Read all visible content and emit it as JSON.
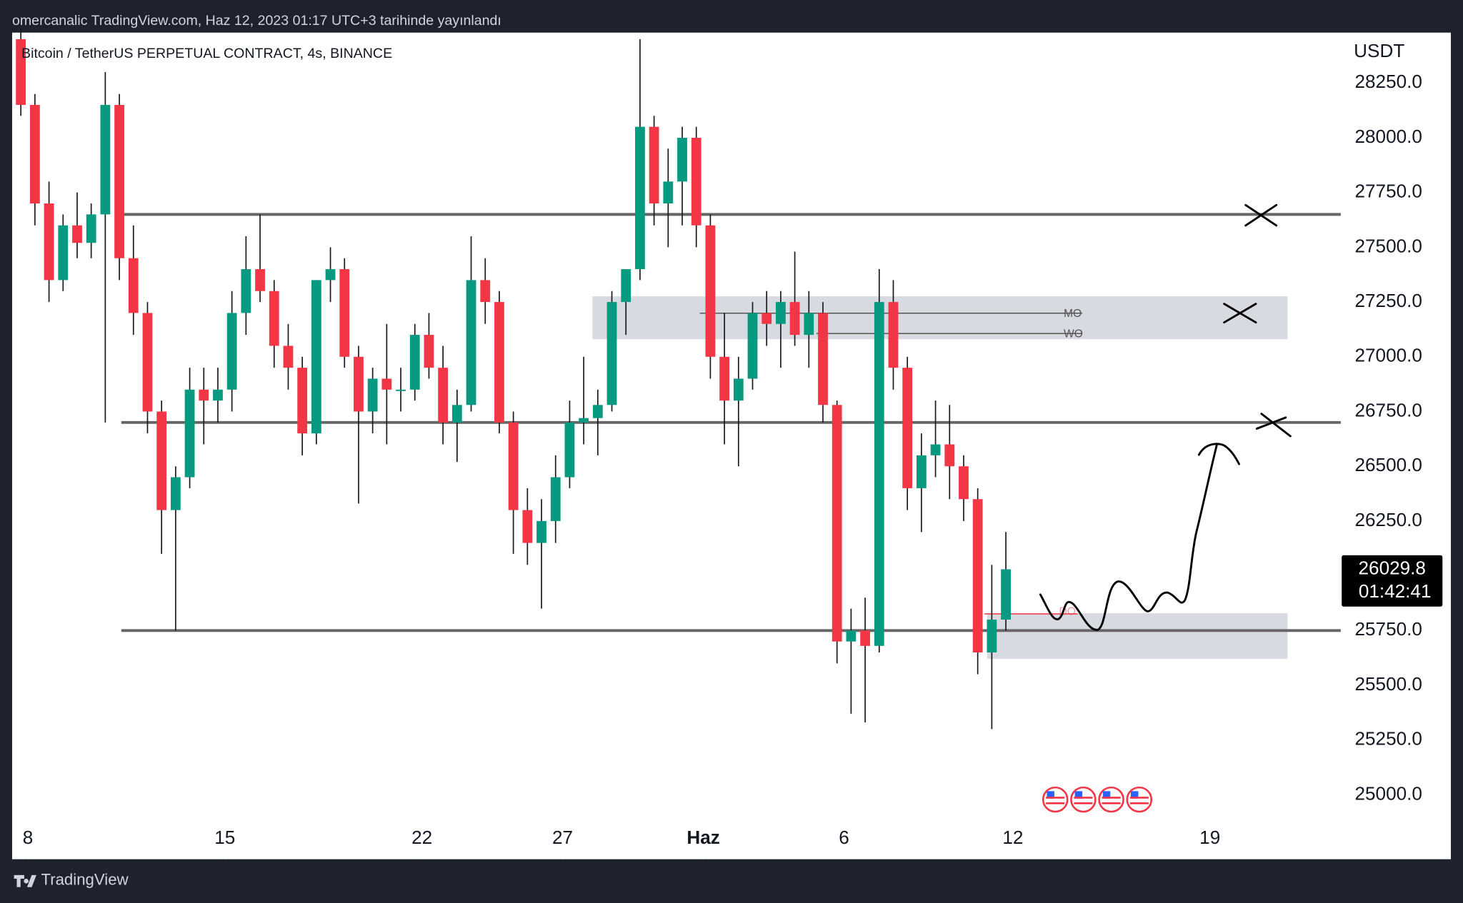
{
  "header": "omercanalic TradingView.com, Haz 12, 2023 01:17 UTC+3 tarihinde yayınlandı",
  "footer": "TradingView",
  "chart_data": {
    "type": "candlestick",
    "title": "Bitcoin / TetherUS PERPETUAL CONTRACT, 4s, BINANCE",
    "y_axis_label": "USDT",
    "up_color": "#089981",
    "down_color": "#f23645",
    "x": [
      -0.5,
      0,
      0.5,
      1,
      1.5,
      2,
      2.5,
      3,
      3.5,
      4,
      4.5,
      5,
      5.5,
      6,
      6.5,
      7,
      7.5,
      8,
      8.5,
      9,
      9.5,
      10,
      10.5,
      11,
      11.5,
      12,
      12.5,
      13,
      13.5,
      14,
      14.5,
      15,
      15.5,
      16,
      16.5,
      17,
      17.5,
      18,
      18.5,
      19,
      19.5,
      20,
      20.5,
      21,
      21.5,
      22,
      22.5,
      23,
      23.5,
      24,
      24.5,
      25,
      25.5,
      26,
      26.5,
      27,
      27.5,
      28,
      28.5,
      29,
      29.5,
      30,
      30.5,
      31,
      31.5,
      32,
      32.5,
      33,
      33.5,
      34,
      34.5
    ],
    "open": [
      28450,
      28150,
      27700,
      27350,
      27600,
      27520,
      27650,
      28150,
      27450,
      27200,
      26750,
      26300,
      26450,
      26850,
      26800,
      26850,
      27200,
      27400,
      27300,
      27050,
      26950,
      26650,
      27350,
      27400,
      27000,
      26750,
      26900,
      26850,
      26850,
      27100,
      26950,
      26700,
      26780,
      27350,
      27250,
      26700,
      26300,
      26150,
      26250,
      26450,
      26700,
      26720,
      26780,
      27250,
      27400,
      28050,
      27700,
      27800,
      28000,
      27600,
      27000,
      26800,
      26900,
      27200,
      27150,
      27250,
      27100,
      27200,
      26780,
      25700,
      25750,
      25680,
      27250,
      26950,
      26400,
      26550,
      26600,
      26500,
      26350,
      25650,
      25800
    ],
    "high": [
      28500,
      28200,
      27800,
      27650,
      27750,
      27700,
      28300,
      28200,
      27600,
      27250,
      26800,
      26500,
      26950,
      26950,
      26950,
      27300,
      27550,
      27650,
      27350,
      27150,
      27000,
      27350,
      27500,
      27450,
      27050,
      26950,
      27150,
      26950,
      27150,
      27200,
      27050,
      26850,
      27550,
      27450,
      27300,
      26750,
      26400,
      26350,
      26550,
      26800,
      27000,
      26850,
      27300,
      27400,
      28450,
      28100,
      27950,
      28050,
      28050,
      27650,
      27200,
      27000,
      27250,
      27300,
      27300,
      27480,
      27300,
      27250,
      26800,
      25850,
      25900,
      27400,
      27350,
      27000,
      26650,
      26800,
      26780,
      26550,
      26400,
      26050,
      26200
    ],
    "low": [
      28100,
      27600,
      27250,
      27300,
      27450,
      27450,
      26700,
      27350,
      27100,
      26650,
      26100,
      25750,
      26400,
      26600,
      26700,
      26750,
      27100,
      27250,
      26950,
      26850,
      26550,
      26600,
      27250,
      26950,
      26330,
      26650,
      26600,
      26750,
      26800,
      26900,
      26600,
      26520,
      26750,
      27150,
      26650,
      26100,
      26050,
      25850,
      26150,
      26400,
      26600,
      26550,
      26750,
      27100,
      27350,
      27600,
      27500,
      27600,
      27500,
      26900,
      26600,
      26500,
      26850,
      27050,
      26950,
      27050,
      26950,
      26700,
      25600,
      25370,
      25330,
      25650,
      26850,
      26300,
      26200,
      26450,
      26350,
      26250,
      25550,
      25300,
      25750
    ],
    "close": [
      28150,
      27700,
      27350,
      27600,
      27520,
      27650,
      28150,
      27450,
      27200,
      26750,
      26300,
      26450,
      26850,
      26800,
      26850,
      27200,
      27400,
      27300,
      27050,
      26950,
      26650,
      27350,
      27400,
      27000,
      26750,
      26900,
      26850,
      26850,
      27100,
      26950,
      26700,
      26780,
      27350,
      27250,
      26700,
      26300,
      26150,
      26250,
      26450,
      26700,
      26720,
      26780,
      27250,
      27400,
      28050,
      27700,
      27800,
      28000,
      27600,
      27000,
      26800,
      26900,
      27200,
      27150,
      27250,
      27100,
      27200,
      26780,
      25700,
      25750,
      25680,
      27250,
      26950,
      26400,
      26550,
      26600,
      26500,
      26350,
      25650,
      25800,
      26029.8
    ],
    "last_price": 26029.8,
    "countdown": "01:42:41",
    "levels": [
      27650,
      26700,
      25750
    ],
    "zones": [
      [
        27080,
        27276
      ],
      [
        25621,
        25829
      ]
    ],
    "annotations": [
      {
        "label": "MO",
        "value": 27199
      },
      {
        "label": "WO",
        "value": 27106
      },
      {
        "label": "DO",
        "value": 25826
      }
    ],
    "xlim": [
      -0.56,
      46.65
    ],
    "ylim": [
      24706,
      28480
    ],
    "xticks": [
      {
        "value": 0,
        "label": "8"
      },
      {
        "value": 7,
        "label": "15"
      },
      {
        "value": 14,
        "label": "22"
      },
      {
        "value": 19,
        "label": "27"
      },
      {
        "value": 24,
        "label": "Haz"
      },
      {
        "value": 29,
        "label": "6"
      },
      {
        "value": 35,
        "label": "12"
      },
      {
        "value": 42,
        "label": "19"
      }
    ],
    "yticks": [
      {
        "value": 28250,
        "label": "28250.0"
      },
      {
        "value": 28000,
        "label": "28000.0"
      },
      {
        "value": 27750,
        "label": "27750.0"
      },
      {
        "value": 27500,
        "label": "27500.0"
      },
      {
        "value": 27250,
        "label": "27250.0"
      },
      {
        "value": 27000,
        "label": "27000.0"
      },
      {
        "value": 26750,
        "label": "26750.0"
      },
      {
        "value": 26500,
        "label": "26500.0"
      },
      {
        "value": 26250,
        "label": "26250.0"
      },
      {
        "value": 26000,
        "label": "26000.0"
      },
      {
        "value": 25750,
        "label": "25750.0"
      },
      {
        "value": 25500,
        "label": "25500.0"
      },
      {
        "value": 25250,
        "label": "25250.0"
      },
      {
        "value": 25000,
        "label": "25000.0"
      }
    ]
  }
}
